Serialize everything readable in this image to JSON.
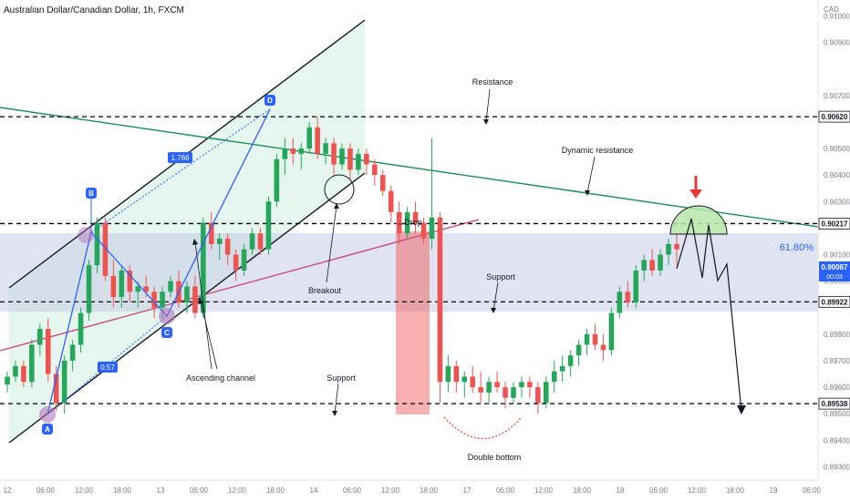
{
  "chart_data": {
    "type": "candlestick",
    "title": "Australian Dollar/Canadian Dollar, 1h, FXCM",
    "currency": "CAD",
    "y_axis": {
      "min": 0.8925,
      "max": 0.9106,
      "ticks": [
        "0.91000",
        "0.90900",
        "0.90700",
        "0.90500",
        "0.90400",
        "0.90300",
        "0.90100",
        "0.90000",
        "0.89800",
        "0.89700",
        "0.89600",
        "0.89500",
        "0.89400",
        "0.89300"
      ]
    },
    "x_axis": {
      "ticks": [
        "12",
        "06:00",
        "12:00",
        "18:00",
        "13",
        "06:00",
        "12:00",
        "18:00",
        "14",
        "06:00",
        "12:00",
        "18:00",
        "17",
        "06:00",
        "12:00",
        "18:00",
        "18",
        "06:00",
        "12:00",
        "18:00",
        "19",
        "06:00"
      ]
    },
    "levels": [
      {
        "value": 0.9062,
        "label": "0.90620"
      },
      {
        "value": 0.90217,
        "label": "0.90217"
      },
      {
        "value": 0.89922,
        "label": "0.89922"
      },
      {
        "value": 0.89538,
        "label": "0.89538"
      }
    ],
    "current_price": {
      "label": "0.90087",
      "countdown": "00:03"
    },
    "fib_label": "61.80%",
    "pattern_points": [
      {
        "label": "A"
      },
      {
        "label": "B"
      },
      {
        "label": "C"
      },
      {
        "label": "D"
      }
    ],
    "ratio_labels": [
      "1.766",
      "0.57"
    ],
    "annotations": {
      "resistance": "Resistance",
      "dynamic_resistance": "Dynamic resistance",
      "drop": "Drop",
      "breakout": "Breakout",
      "support_upper": "Support",
      "support_lower": "Support",
      "ascending_channel": "Ascending channel",
      "double_bottom": "Double bottom"
    },
    "colors": {
      "bull": "#26a65b",
      "bear": "#ef5350",
      "level": "#000000",
      "trend_green": "#1e8c55",
      "trend_pink": "#c94d7b",
      "pattern": "#2962ff"
    },
    "candles": [
      [
        0.8961,
        0.8966,
        0.8958,
        0.8964
      ],
      [
        0.8964,
        0.897,
        0.8962,
        0.8968
      ],
      [
        0.8968,
        0.897,
        0.896,
        0.8962
      ],
      [
        0.8962,
        0.8978,
        0.896,
        0.8976
      ],
      [
        0.8976,
        0.8984,
        0.8972,
        0.8982
      ],
      [
        0.8982,
        0.8986,
        0.8962,
        0.8965
      ],
      [
        0.8965,
        0.8968,
        0.8951,
        0.8954
      ],
      [
        0.8954,
        0.8972,
        0.895,
        0.897
      ],
      [
        0.897,
        0.8978,
        0.8966,
        0.8976
      ],
      [
        0.8976,
        0.899,
        0.8973,
        0.8988
      ],
      [
        0.8988,
        0.9008,
        0.8985,
        0.9006
      ],
      [
        0.9006,
        0.9024,
        0.9003,
        0.9022
      ],
      [
        0.9022,
        0.9024,
        0.9,
        0.9002
      ],
      [
        0.9002,
        0.9008,
        0.899,
        0.8994
      ],
      [
        0.8994,
        0.9006,
        0.899,
        0.9004
      ],
      [
        0.9004,
        0.9006,
        0.8992,
        0.8996
      ],
      [
        0.8996,
        0.9,
        0.899,
        0.8998
      ],
      [
        0.8998,
        0.9002,
        0.8994,
        0.8996
      ],
      [
        0.8996,
        0.8998,
        0.8986,
        0.899
      ],
      [
        0.899,
        0.8998,
        0.8986,
        0.8996
      ],
      [
        0.8996,
        0.9002,
        0.8994,
        0.9
      ],
      [
        0.9,
        0.9004,
        0.899,
        0.8992
      ],
      [
        0.8992,
        0.9,
        0.8988,
        0.8998
      ],
      [
        0.8998,
        0.9002,
        0.8986,
        0.8988
      ],
      [
        0.8988,
        0.9024,
        0.8986,
        0.9022
      ],
      [
        0.9022,
        0.9026,
        0.9012,
        0.9014
      ],
      [
        0.9014,
        0.9018,
        0.9008,
        0.9016
      ],
      [
        0.9016,
        0.9018,
        0.9006,
        0.901
      ],
      [
        0.901,
        0.9012,
        0.9,
        0.9004
      ],
      [
        0.9004,
        0.9014,
        0.9002,
        0.9012
      ],
      [
        0.9012,
        0.902,
        0.901,
        0.9018
      ],
      [
        0.9018,
        0.902,
        0.901,
        0.9012
      ],
      [
        0.9012,
        0.9032,
        0.901,
        0.903
      ],
      [
        0.903,
        0.9048,
        0.9028,
        0.9046
      ],
      [
        0.9046,
        0.9054,
        0.904,
        0.905
      ],
      [
        0.905,
        0.9054,
        0.9044,
        0.9048
      ],
      [
        0.9048,
        0.9052,
        0.9042,
        0.905
      ],
      [
        0.905,
        0.906,
        0.9048,
        0.9058
      ],
      [
        0.9058,
        0.9062,
        0.9046,
        0.9048
      ],
      [
        0.9048,
        0.9054,
        0.9044,
        0.9052
      ],
      [
        0.9052,
        0.9054,
        0.904,
        0.9044
      ],
      [
        0.9044,
        0.9052,
        0.9042,
        0.905
      ],
      [
        0.905,
        0.9052,
        0.9038,
        0.9042
      ],
      [
        0.9042,
        0.905,
        0.904,
        0.9048
      ],
      [
        0.9048,
        0.905,
        0.904,
        0.9044
      ],
      [
        0.9044,
        0.9046,
        0.9036,
        0.904
      ],
      [
        0.904,
        0.9042,
        0.9032,
        0.9034
      ],
      [
        0.9034,
        0.9036,
        0.9022,
        0.9026
      ],
      [
        0.9026,
        0.903,
        0.9014,
        0.9018
      ],
      [
        0.9018,
        0.9028,
        0.9016,
        0.9026
      ],
      [
        0.9026,
        0.903,
        0.9018,
        0.9022
      ],
      [
        0.9022,
        0.9024,
        0.9014,
        0.9016
      ],
      [
        0.9016,
        0.9054,
        0.9012,
        0.9024
      ],
      [
        0.9024,
        0.9026,
        0.8954,
        0.8962
      ],
      [
        0.8962,
        0.8972,
        0.8958,
        0.8968
      ],
      [
        0.8968,
        0.897,
        0.8958,
        0.8962
      ],
      [
        0.8962,
        0.8966,
        0.8956,
        0.8964
      ],
      [
        0.8964,
        0.8968,
        0.8958,
        0.896
      ],
      [
        0.896,
        0.8966,
        0.8954,
        0.8958
      ],
      [
        0.8958,
        0.8964,
        0.8954,
        0.8962
      ],
      [
        0.8962,
        0.8966,
        0.8958,
        0.896
      ],
      [
        0.896,
        0.8962,
        0.8952,
        0.8956
      ],
      [
        0.8956,
        0.8962,
        0.8954,
        0.896
      ],
      [
        0.896,
        0.8964,
        0.8956,
        0.8962
      ],
      [
        0.8962,
        0.8964,
        0.8956,
        0.896
      ],
      [
        0.896,
        0.8962,
        0.895,
        0.8954
      ],
      [
        0.8954,
        0.8964,
        0.8952,
        0.8962
      ],
      [
        0.8962,
        0.897,
        0.8958,
        0.8966
      ],
      [
        0.8966,
        0.8972,
        0.8962,
        0.8968
      ],
      [
        0.8968,
        0.8974,
        0.8964,
        0.8972
      ],
      [
        0.8972,
        0.8978,
        0.8968,
        0.8976
      ],
      [
        0.8976,
        0.8982,
        0.8972,
        0.898
      ],
      [
        0.898,
        0.8984,
        0.8974,
        0.8976
      ],
      [
        0.8976,
        0.898,
        0.897,
        0.8974
      ],
      [
        0.8974,
        0.899,
        0.8972,
        0.8988
      ],
      [
        0.8988,
        0.8998,
        0.8986,
        0.8996
      ],
      [
        0.8996,
        0.9,
        0.899,
        0.8992
      ],
      [
        0.8992,
        0.9006,
        0.899,
        0.9004
      ],
      [
        0.9004,
        0.901,
        0.9,
        0.9008
      ],
      [
        0.9008,
        0.9012,
        0.9002,
        0.9004
      ],
      [
        0.9004,
        0.9012,
        0.9002,
        0.901
      ],
      [
        0.901,
        0.9016,
        0.9006,
        0.9014
      ],
      [
        0.9014,
        0.9018,
        0.9006,
        0.9012
      ]
    ]
  }
}
